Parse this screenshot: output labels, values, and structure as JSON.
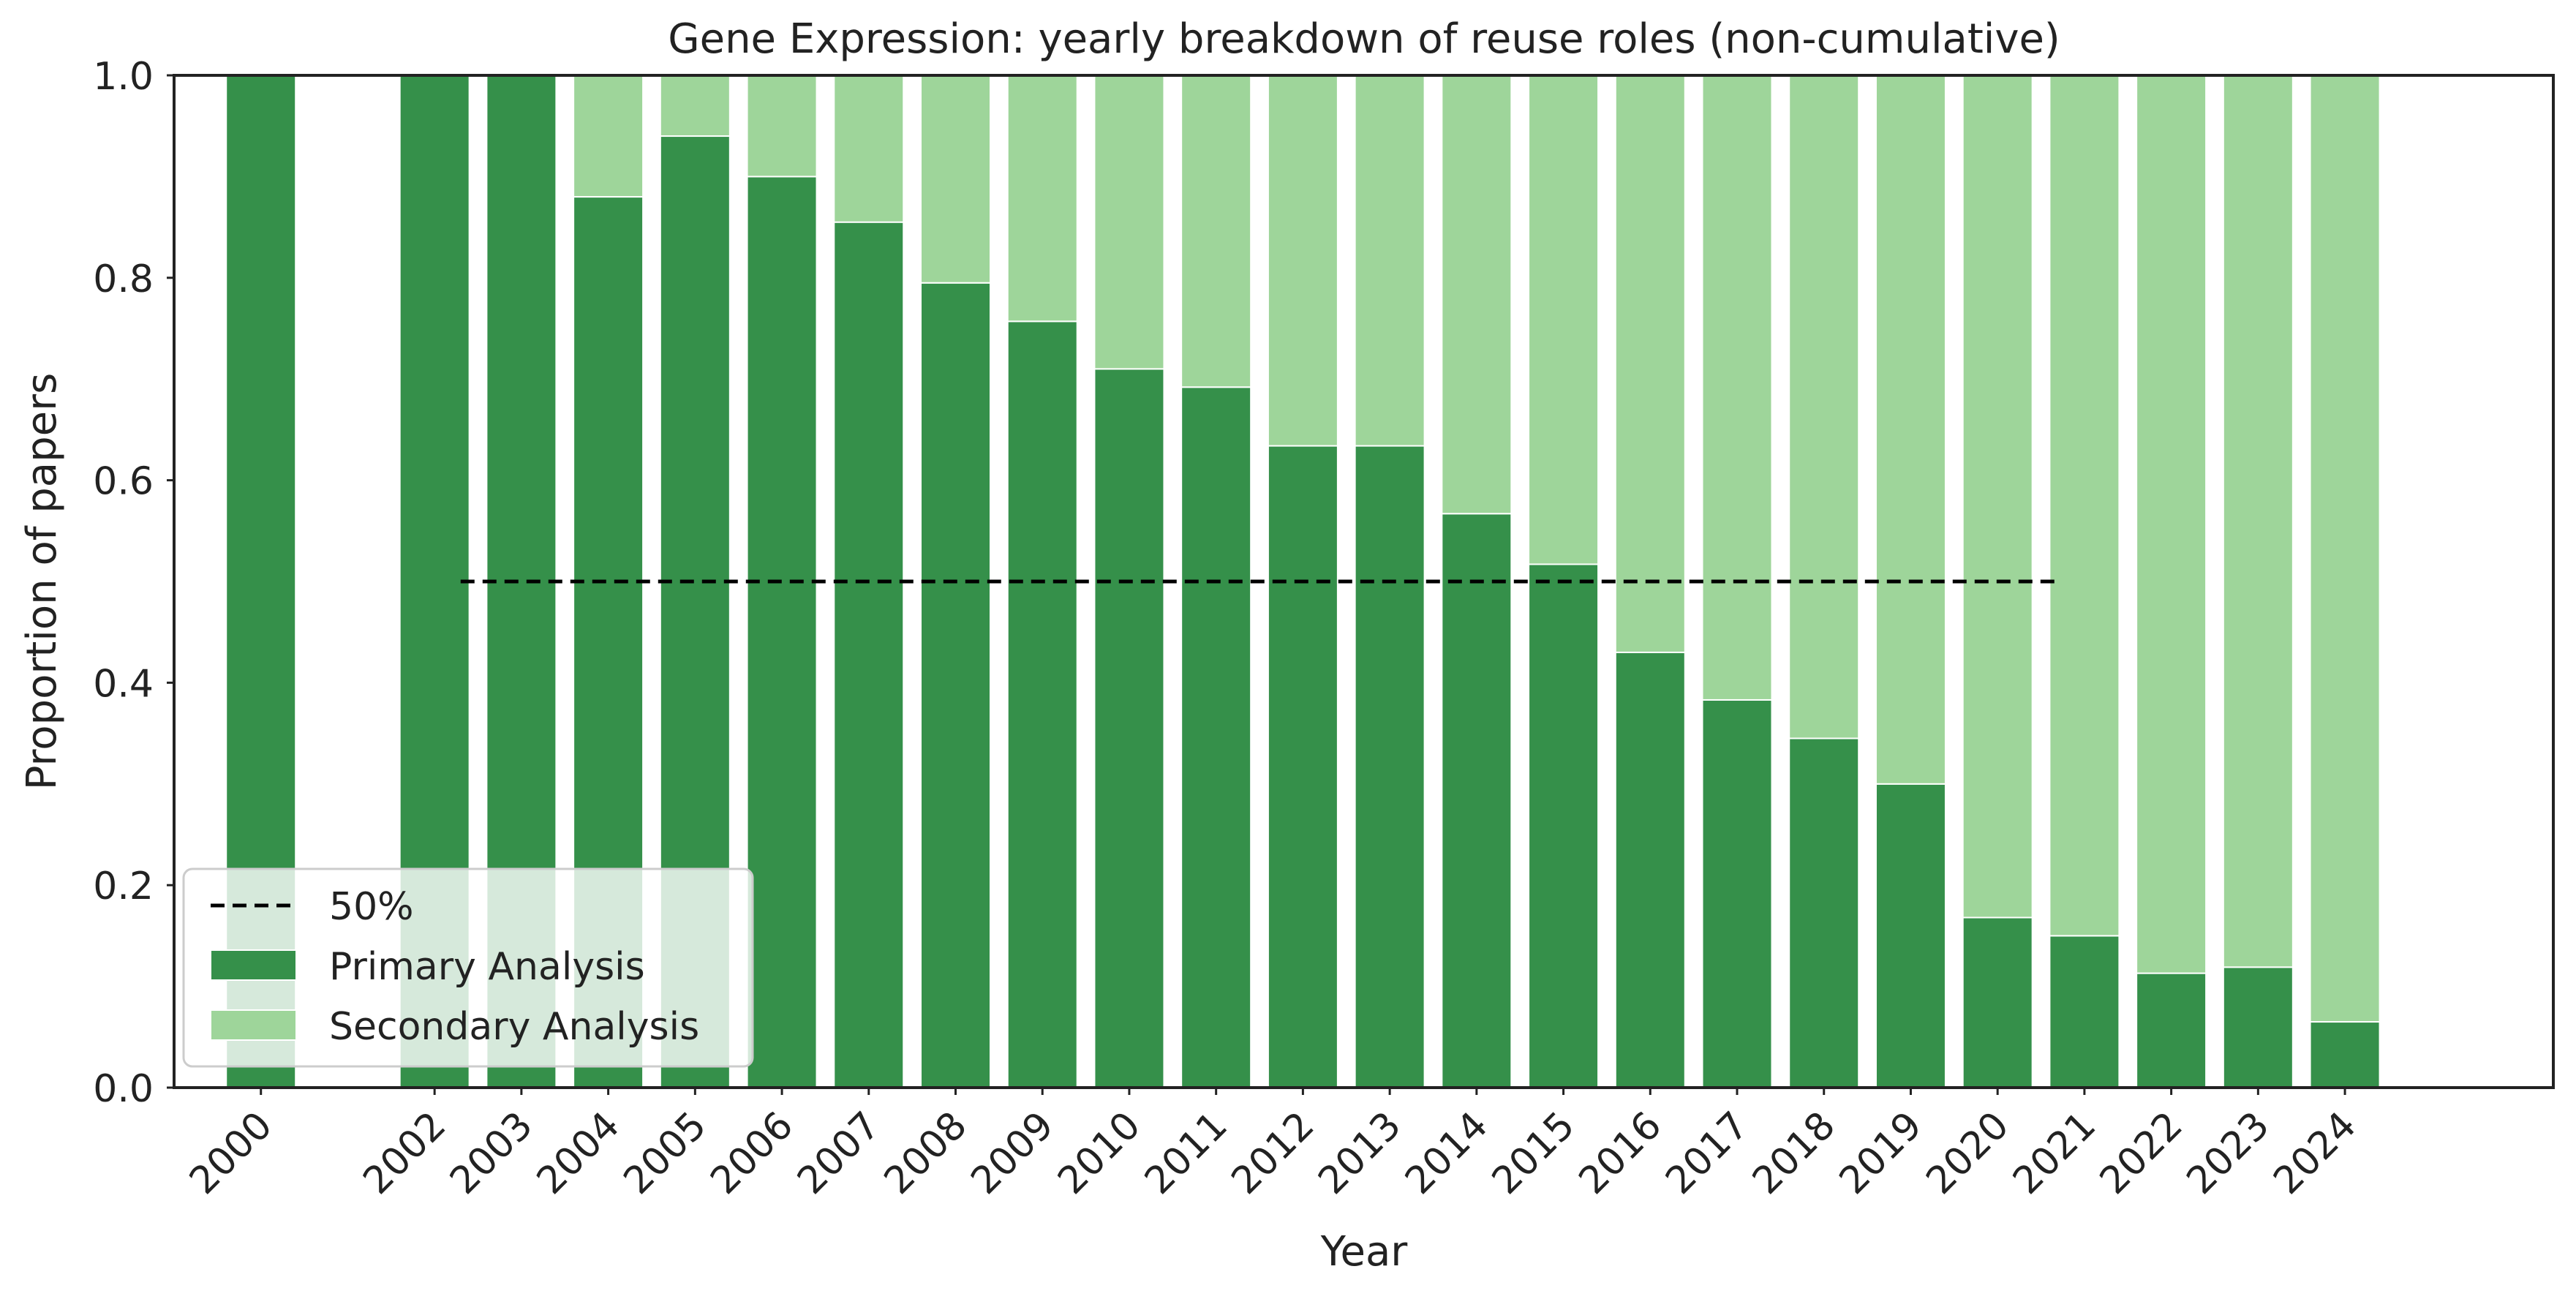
{
  "chart_data": {
    "type": "bar",
    "stacked": true,
    "title": "Gene Expression: yearly breakdown of reuse roles (non-cumulative)",
    "xlabel": "Year",
    "ylabel": "Proportion of papers",
    "ylim": [
      0,
      1
    ],
    "yticks": [
      "0.0",
      "0.2",
      "0.4",
      "0.6",
      "0.8",
      "1.0"
    ],
    "x": [
      2000,
      2002,
      2003,
      2004,
      2005,
      2006,
      2007,
      2008,
      2009,
      2010,
      2011,
      2012,
      2013,
      2014,
      2015,
      2016,
      2017,
      2018,
      2019,
      2020,
      2021,
      2022,
      2023,
      2024
    ],
    "xlim": [
      1999.0,
      2026.4
    ],
    "xticks": [
      "2000",
      "2002",
      "2003",
      "2004",
      "2005",
      "2006",
      "2007",
      "2008",
      "2009",
      "2010",
      "2011",
      "2012",
      "2013",
      "2014",
      "2015",
      "2016",
      "2017",
      "2018",
      "2019",
      "2020",
      "2021",
      "2022",
      "2023",
      "2024"
    ],
    "series": [
      {
        "name": "Primary Analysis",
        "color": "#35904a",
        "values": [
          1.0,
          1.0,
          1.0,
          0.88,
          0.94,
          0.9,
          0.855,
          0.795,
          0.757,
          0.71,
          0.692,
          0.634,
          0.634,
          0.567,
          0.517,
          0.43,
          0.383,
          0.345,
          0.3,
          0.168,
          0.15,
          0.113,
          0.119,
          0.065
        ]
      },
      {
        "name": "Secondary Analysis",
        "color": "#9ed59a",
        "values": [
          0.0,
          0.0,
          0.0,
          0.12,
          0.06,
          0.1,
          0.145,
          0.205,
          0.243,
          0.29,
          0.308,
          0.366,
          0.366,
          0.433,
          0.483,
          0.57,
          0.617,
          0.655,
          0.7,
          0.832,
          0.85,
          0.887,
          0.881,
          0.935
        ]
      }
    ],
    "reference_line": {
      "label": "50%",
      "y": 0.5,
      "x_from": 2002.3,
      "x_to": 2020.7,
      "color": "#000000",
      "style": "dashed"
    },
    "legend_position": "lower-left",
    "grid": false
  }
}
